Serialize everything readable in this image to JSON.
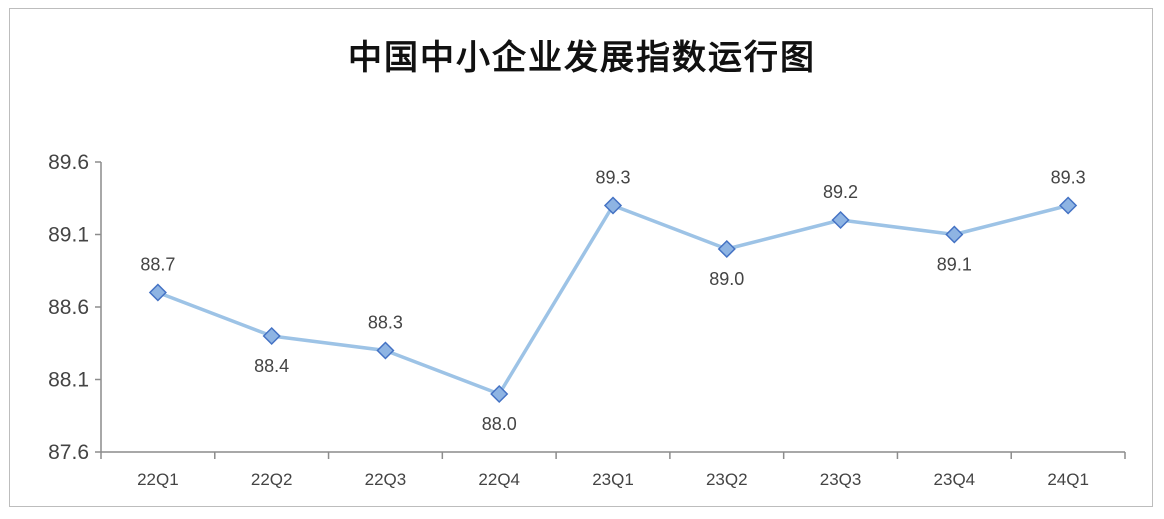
{
  "chart_data": {
    "type": "line",
    "title": "中国中小企业发展指数运行图",
    "xlabel": "",
    "ylabel": "",
    "categories": [
      "22Q1",
      "22Q2",
      "22Q3",
      "22Q4",
      "23Q1",
      "23Q2",
      "23Q3",
      "23Q4",
      "24Q1"
    ],
    "series": [
      {
        "values": [
          88.7,
          88.4,
          88.3,
          88.0,
          89.3,
          89.0,
          89.2,
          89.1,
          89.3
        ],
        "labels": [
          "88.7",
          "88.4",
          "88.3",
          "88.0",
          "89.3",
          "89.0",
          "89.2",
          "89.1",
          "89.3"
        ],
        "label_position": [
          "above",
          "below",
          "above",
          "below",
          "above",
          "below",
          "above",
          "below",
          "above"
        ],
        "color": "#9dc3e6",
        "marker": "diamond",
        "marker_color": "#8eb4e3",
        "marker_edge": "#4472c4"
      }
    ],
    "ylim": [
      87.6,
      89.6
    ],
    "yticks": [
      "87.6",
      "88.1",
      "88.6",
      "89.1",
      "89.6"
    ],
    "grid": false,
    "legend": "none"
  }
}
